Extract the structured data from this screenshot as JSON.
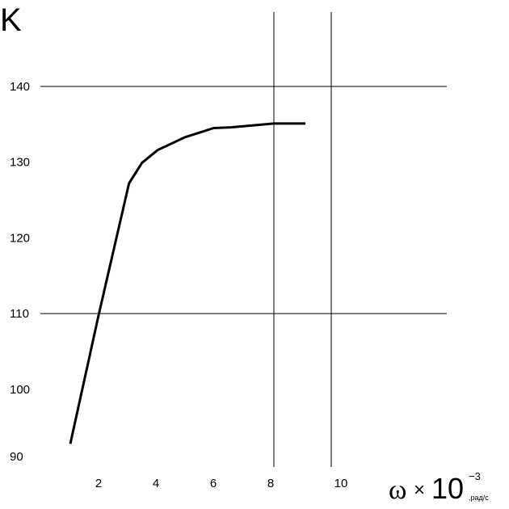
{
  "chart_data": {
    "type": "line",
    "ylabel": "K",
    "xlabel": {
      "symbol": "ω",
      "times": "×",
      "base": "10",
      "exponent": "−3",
      "unit": ",рад/с"
    },
    "x_ticks": [
      "2",
      "4",
      "6",
      "8",
      "10"
    ],
    "y_ticks": [
      "90",
      "100",
      "110",
      "120",
      "130",
      "140"
    ],
    "grid": {
      "vertical_at": [
        8,
        10
      ],
      "horizontal_at": [
        110,
        140
      ]
    },
    "xlim": [
      0,
      14
    ],
    "ylim": [
      90,
      140
    ],
    "series": [
      {
        "x": [
          0.9,
          1.9,
          2.95,
          3.4,
          3.95,
          4.9,
          5.9,
          6.5,
          8.0,
          9.1
        ],
        "y": [
          92.8,
          110,
          127.2,
          129.9,
          131.6,
          133.3,
          134.5,
          134.6,
          135.1,
          135.1
        ],
        "color": "#000000"
      }
    ]
  }
}
